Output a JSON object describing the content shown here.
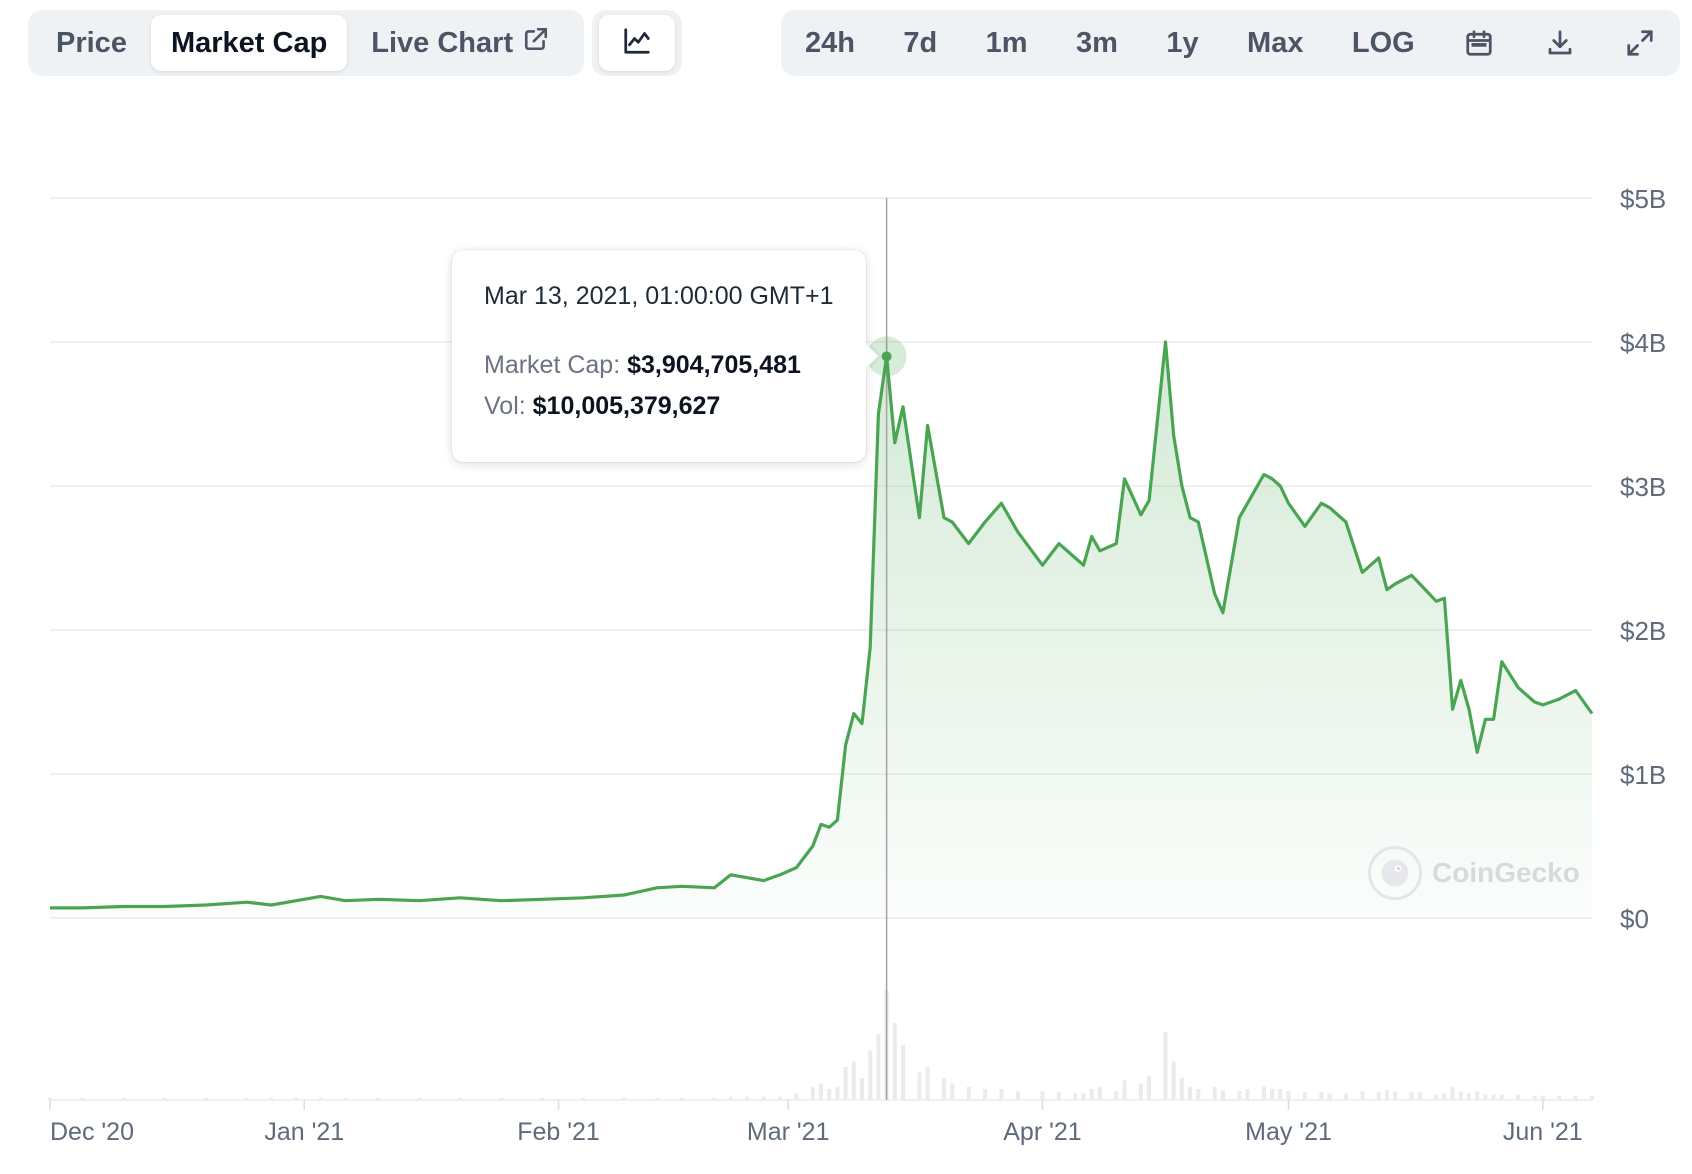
{
  "tabs": [
    {
      "label": "Price",
      "active": false
    },
    {
      "label": "Market Cap",
      "active": true
    },
    {
      "label": "Live Chart",
      "active": false
    }
  ],
  "ranges": [
    "24h",
    "7d",
    "1m",
    "3m",
    "1y",
    "Max",
    "LOG"
  ],
  "icons": {
    "chart_type": "line-chart-icon",
    "calendar": "calendar-icon",
    "download": "download-icon",
    "fullscreen": "fullscreen-icon",
    "external_link": "external-link-icon"
  },
  "tooltip": {
    "date": "Mar 13, 2021, 01:00:00 GMT+1",
    "market_cap_label": "Market Cap:",
    "market_cap_value": "$3,904,705,481",
    "vol_label": "Vol:",
    "vol_value": "$10,005,379,627"
  },
  "watermark": "CoinGecko",
  "colors": {
    "line": "#4aa552",
    "fill": "#4aa552",
    "volume": "#ebebeb",
    "grid": "#ececec",
    "axis_text": "#5f6b7a"
  },
  "chart_data": {
    "type": "area",
    "title": "",
    "xlabel": "",
    "ylabel": "",
    "y_tick_labels": [
      "$0",
      "$1B",
      "$2B",
      "$3B",
      "$4B",
      "$5B"
    ],
    "y_tick_values": [
      0,
      1,
      2,
      3,
      4,
      5
    ],
    "y_unit": "billions USD",
    "ylim": [
      0,
      5
    ],
    "x_tick_labels": [
      "Dec '20",
      "Jan '21",
      "Feb '21",
      "Mar '21",
      "Apr '21",
      "May '21",
      "Jun '21"
    ],
    "x_tick_dates": [
      "2020-12-01",
      "2021-01-01",
      "2021-02-01",
      "2021-03-01",
      "2021-04-01",
      "2021-05-01",
      "2021-06-01"
    ],
    "xlim": [
      "2020-12-01",
      "2021-06-07"
    ],
    "grid": true,
    "hover_date": "2021-03-13",
    "series": [
      {
        "name": "Market Cap",
        "dates": [
          "2020-12-01",
          "2020-12-05",
          "2020-12-10",
          "2020-12-15",
          "2020-12-20",
          "2020-12-25",
          "2020-12-28",
          "2020-12-31",
          "2021-01-03",
          "2021-01-06",
          "2021-01-10",
          "2021-01-15",
          "2021-01-20",
          "2021-01-25",
          "2021-01-30",
          "2021-02-04",
          "2021-02-09",
          "2021-02-13",
          "2021-02-16",
          "2021-02-20",
          "2021-02-22",
          "2021-02-24",
          "2021-02-26",
          "2021-02-28",
          "2021-03-02",
          "2021-03-04",
          "2021-03-05",
          "2021-03-06",
          "2021-03-07",
          "2021-03-08",
          "2021-03-09",
          "2021-03-10",
          "2021-03-11",
          "2021-03-12",
          "2021-03-13",
          "2021-03-14",
          "2021-03-15",
          "2021-03-17",
          "2021-03-18",
          "2021-03-20",
          "2021-03-21",
          "2021-03-23",
          "2021-03-25",
          "2021-03-27",
          "2021-03-29",
          "2021-04-01",
          "2021-04-03",
          "2021-04-05",
          "2021-04-06",
          "2021-04-07",
          "2021-04-08",
          "2021-04-10",
          "2021-04-11",
          "2021-04-13",
          "2021-04-14",
          "2021-04-16",
          "2021-04-17",
          "2021-04-18",
          "2021-04-19",
          "2021-04-20",
          "2021-04-22",
          "2021-04-23",
          "2021-04-25",
          "2021-04-26",
          "2021-04-28",
          "2021-04-29",
          "2021-04-30",
          "2021-05-01",
          "2021-05-03",
          "2021-05-05",
          "2021-05-06",
          "2021-05-08",
          "2021-05-10",
          "2021-05-12",
          "2021-05-13",
          "2021-05-14",
          "2021-05-16",
          "2021-05-17",
          "2021-05-19",
          "2021-05-20",
          "2021-05-21",
          "2021-05-22",
          "2021-05-23",
          "2021-05-24",
          "2021-05-25",
          "2021-05-26",
          "2021-05-27",
          "2021-05-29",
          "2021-05-31",
          "2021-06-01",
          "2021-06-03",
          "2021-06-05",
          "2021-06-07"
        ],
        "values": [
          0.07,
          0.07,
          0.08,
          0.08,
          0.09,
          0.11,
          0.09,
          0.12,
          0.15,
          0.12,
          0.13,
          0.12,
          0.14,
          0.12,
          0.13,
          0.14,
          0.16,
          0.21,
          0.22,
          0.21,
          0.3,
          0.28,
          0.26,
          0.3,
          0.35,
          0.5,
          0.65,
          0.63,
          0.68,
          1.2,
          1.42,
          1.35,
          1.88,
          3.5,
          3.9,
          3.3,
          3.55,
          2.78,
          3.42,
          2.78,
          2.75,
          2.6,
          2.75,
          2.88,
          2.68,
          2.45,
          2.6,
          2.5,
          2.45,
          2.65,
          2.55,
          2.6,
          3.05,
          2.8,
          2.9,
          4.0,
          3.35,
          3.0,
          2.78,
          2.75,
          2.25,
          2.12,
          2.78,
          2.88,
          3.08,
          3.05,
          3.0,
          2.88,
          2.72,
          2.88,
          2.85,
          2.75,
          2.4,
          2.5,
          2.28,
          2.32,
          2.38,
          2.32,
          2.2,
          2.22,
          1.45,
          1.65,
          1.45,
          1.15,
          1.38,
          1.38,
          1.78,
          1.6,
          1.5,
          1.48,
          1.52,
          1.58,
          1.42
        ]
      }
    ],
    "volume_relative": [
      0.02,
      0.02,
      0.02,
      0.02,
      0.02,
      0.02,
      0.02,
      0.02,
      0.02,
      0.02,
      0.02,
      0.02,
      0.02,
      0.02,
      0.02,
      0.02,
      0.02,
      0.02,
      0.02,
      0.02,
      0.03,
      0.03,
      0.03,
      0.03,
      0.06,
      0.12,
      0.15,
      0.1,
      0.12,
      0.3,
      0.35,
      0.2,
      0.45,
      0.6,
      1.0,
      0.7,
      0.5,
      0.25,
      0.3,
      0.2,
      0.15,
      0.12,
      0.1,
      0.1,
      0.08,
      0.08,
      0.07,
      0.06,
      0.06,
      0.1,
      0.12,
      0.08,
      0.18,
      0.15,
      0.22,
      0.62,
      0.35,
      0.2,
      0.12,
      0.1,
      0.12,
      0.09,
      0.08,
      0.1,
      0.12,
      0.1,
      0.1,
      0.08,
      0.07,
      0.07,
      0.06,
      0.06,
      0.08,
      0.07,
      0.09,
      0.08,
      0.07,
      0.07,
      0.05,
      0.06,
      0.12,
      0.08,
      0.06,
      0.08,
      0.05,
      0.05,
      0.05,
      0.05,
      0.04,
      0.04,
      0.04,
      0.04,
      0.04
    ]
  }
}
